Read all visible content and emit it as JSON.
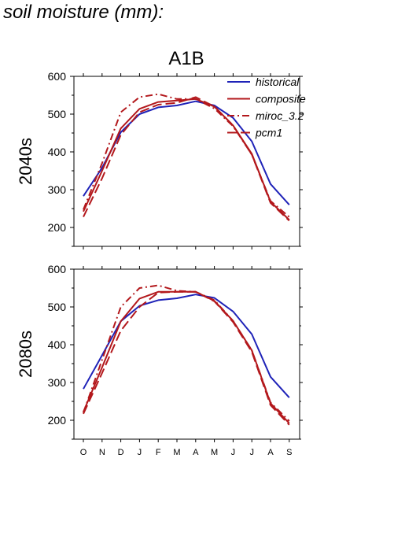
{
  "page": {
    "title": "soil moisture (mm):"
  },
  "figure": {
    "scenario": "A1B"
  },
  "colors": {
    "historical": "#1f23b8",
    "projection": "#b3181c"
  },
  "legend": {
    "placement": "top-right",
    "entries": [
      "historical",
      "composite",
      "miroc_3.2",
      "pcm1"
    ]
  },
  "chart_data": [
    {
      "type": "line",
      "panel_label": "2040s",
      "categories": [
        "O",
        "N",
        "D",
        "J",
        "F",
        "M",
        "A",
        "M",
        "J",
        "J",
        "A",
        "S"
      ],
      "ylim": [
        150,
        600
      ],
      "yticks": [
        200,
        300,
        400,
        500,
        600
      ],
      "grid": false,
      "series": [
        {
          "name": "historical",
          "style": "solid",
          "color": "#1f23b8",
          "values": [
            283,
            358,
            452,
            500,
            518,
            523,
            534,
            523,
            490,
            428,
            315,
            260
          ]
        },
        {
          "name": "composite",
          "style": "solid",
          "color": "#b3181c",
          "values": [
            242,
            350,
            462,
            514,
            532,
            536,
            540,
            520,
            470,
            395,
            268,
            220
          ]
        },
        {
          "name": "miroc_3.2",
          "style": "dashdot",
          "color": "#b3181c",
          "values": [
            247,
            370,
            505,
            545,
            553,
            540,
            540,
            515,
            468,
            393,
            270,
            228
          ]
        },
        {
          "name": "pcm1",
          "style": "longdash",
          "color": "#b3181c",
          "values": [
            228,
            330,
            445,
            505,
            525,
            530,
            545,
            520,
            470,
            393,
            265,
            218
          ]
        }
      ]
    },
    {
      "type": "line",
      "panel_label": "2080s",
      "categories": [
        "O",
        "N",
        "D",
        "J",
        "F",
        "M",
        "A",
        "M",
        "J",
        "J",
        "A",
        "S"
      ],
      "ylim": [
        150,
        600
      ],
      "yticks": [
        200,
        300,
        400,
        500,
        600
      ],
      "grid": false,
      "series": [
        {
          "name": "historical",
          "style": "solid",
          "color": "#1f23b8",
          "values": [
            283,
            372,
            462,
            503,
            518,
            523,
            533,
            524,
            488,
            428,
            315,
            260
          ]
        },
        {
          "name": "composite",
          "style": "solid",
          "color": "#b3181c",
          "values": [
            222,
            340,
            462,
            522,
            540,
            540,
            540,
            516,
            463,
            385,
            245,
            192
          ]
        },
        {
          "name": "miroc_3.2",
          "style": "dashdot",
          "color": "#b3181c",
          "values": [
            220,
            360,
            500,
            550,
            557,
            543,
            540,
            518,
            463,
            385,
            247,
            198
          ]
        },
        {
          "name": "pcm1",
          "style": "longdash",
          "color": "#b3181c",
          "values": [
            217,
            325,
            437,
            500,
            538,
            540,
            540,
            515,
            460,
            381,
            240,
            188
          ]
        }
      ]
    }
  ]
}
